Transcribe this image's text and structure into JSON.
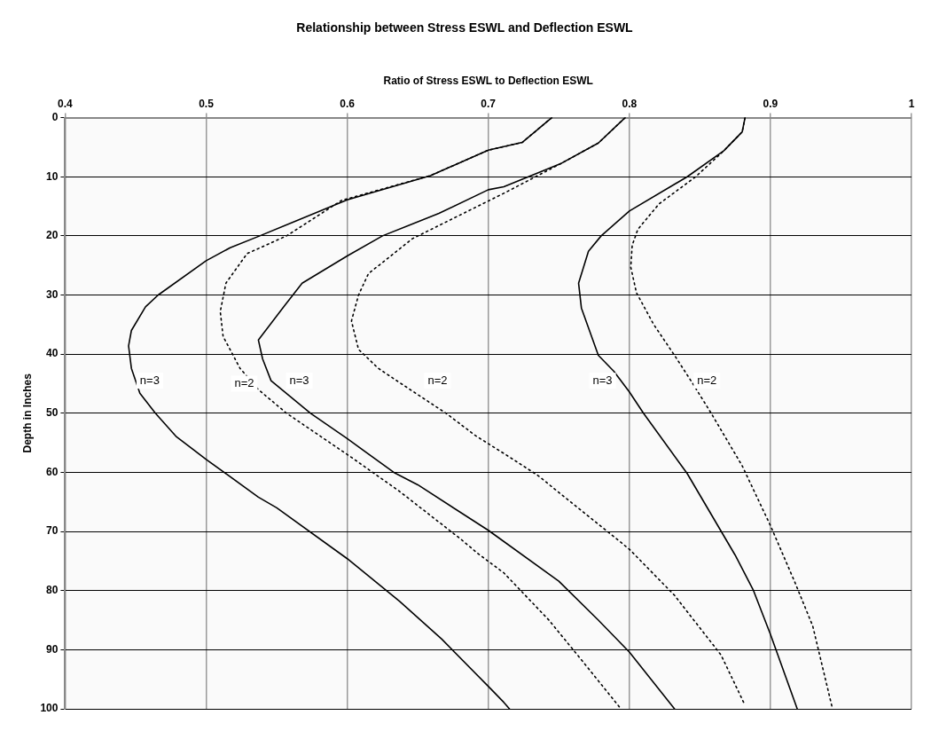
{
  "chart_data": {
    "type": "line",
    "title": "Relationship between Stress ESWL and Deflection ESWL",
    "xlabel": "Ratio of Stress ESWL to Deflection ESWL",
    "ylabel": "Depth in Inches",
    "xlim": [
      0.4,
      1
    ],
    "xticks": [
      0.4,
      0.5,
      0.6,
      0.7,
      0.8,
      0.9,
      1
    ],
    "ylim": [
      100,
      0
    ],
    "yticks": [
      0,
      10,
      20,
      30,
      40,
      50,
      60,
      70,
      80,
      90,
      100
    ],
    "grid": true,
    "legend": false,
    "marker": "none",
    "series": [
      {
        "color": "#000000",
        "line_style": "solid",
        "x": [
          0.745,
          0.724,
          0.7,
          0.659,
          0.6,
          0.538,
          0.517,
          0.5,
          0.466,
          0.457,
          0.447,
          0.445,
          0.447,
          0.453,
          0.464,
          0.479,
          0.5,
          0.537,
          0.55,
          0.6,
          0.637,
          0.667,
          0.7,
          0.711,
          0.715
        ],
        "values": [
          0,
          4.2,
          5.5,
          9.8,
          13.9,
          20,
          22,
          24.2,
          30,
          32,
          36,
          38.6,
          42.4,
          46.6,
          50,
          54,
          57.8,
          64.2,
          66,
          74.6,
          81.8,
          88.2,
          96.2,
          98.9,
          100
        ]
      },
      {
        "color": "#000000",
        "line_style": "dotted",
        "x": [
          0.745,
          0.724,
          0.7,
          0.659,
          0.596,
          0.557,
          0.529,
          0.514,
          0.51,
          0.512,
          0.524,
          0.537,
          0.557,
          0.602,
          0.637,
          0.68,
          0.693,
          0.711,
          0.743,
          0.767,
          0.793
        ],
        "values": [
          0,
          4.2,
          5.5,
          9.8,
          14,
          20,
          23,
          28,
          32.8,
          37,
          42.4,
          46,
          50,
          57.3,
          63.2,
          71.2,
          73.8,
          77,
          85,
          92,
          99.7
        ]
      },
      {
        "color": "#000000",
        "line_style": "solid",
        "x": [
          0.797,
          0.778,
          0.752,
          0.711,
          0.7,
          0.665,
          0.625,
          0.6,
          0.568,
          0.555,
          0.537,
          0.54,
          0.546,
          0.574,
          0.6,
          0.633,
          0.65,
          0.7,
          0.75,
          0.778,
          0.8,
          0.832
        ],
        "values": [
          0,
          4.3,
          7.7,
          11.7,
          12.2,
          16.2,
          20,
          23.4,
          28,
          32,
          37.6,
          40.8,
          44.5,
          50,
          54.3,
          60,
          62.1,
          69.8,
          78.4,
          85,
          90.4,
          100
        ]
      },
      {
        "color": "#000000",
        "line_style": "dotted",
        "x": [
          0.797,
          0.778,
          0.752,
          0.711,
          0.646,
          0.615,
          0.608,
          0.603,
          0.608,
          0.622,
          0.637,
          0.67,
          0.691,
          0.711,
          0.735,
          0.8,
          0.832,
          0.865,
          0.882
        ],
        "values": [
          0,
          4.3,
          7.7,
          12.8,
          20.5,
          26.4,
          30,
          34.4,
          39.2,
          42.4,
          44.8,
          50,
          53.8,
          56.8,
          60.5,
          73,
          80.8,
          90.9,
          99.4
        ]
      },
      {
        "color": "#000000",
        "line_style": "solid",
        "x": [
          0.882,
          0.88,
          0.867,
          0.841,
          0.8,
          0.78,
          0.771,
          0.764,
          0.766,
          0.778,
          0.789,
          0.8,
          0.81,
          0.841,
          0.875,
          0.888,
          0.9,
          0.919
        ],
        "values": [
          0,
          2.4,
          5.6,
          10,
          15.8,
          20,
          22.6,
          28,
          32.2,
          40.2,
          42.9,
          46.4,
          50,
          60.2,
          74,
          80,
          87.4,
          100
        ]
      },
      {
        "color": "#000000",
        "line_style": "dotted",
        "x": [
          0.882,
          0.88,
          0.867,
          0.847,
          0.821,
          0.806,
          0.802,
          0.801,
          0.805,
          0.817,
          0.832,
          0.845,
          0.858,
          0.88,
          0.9,
          0.917,
          0.93,
          0.944
        ],
        "values": [
          0,
          2.4,
          5.6,
          10,
          14.6,
          18.9,
          21.6,
          25.3,
          29.6,
          34.9,
          40.2,
          45,
          50,
          58.9,
          69,
          78.4,
          86,
          100
        ]
      }
    ],
    "annotations": [
      {
        "text": "n=3",
        "x": 0.46,
        "y": 44.5
      },
      {
        "text": "n=2",
        "x": 0.527,
        "y": 45
      },
      {
        "text": "n=3",
        "x": 0.566,
        "y": 44.5
      },
      {
        "text": "n=2",
        "x": 0.664,
        "y": 44.5
      },
      {
        "text": "n=3",
        "x": 0.781,
        "y": 44.5
      },
      {
        "text": "n=2",
        "x": 0.855,
        "y": 44.5
      }
    ]
  }
}
